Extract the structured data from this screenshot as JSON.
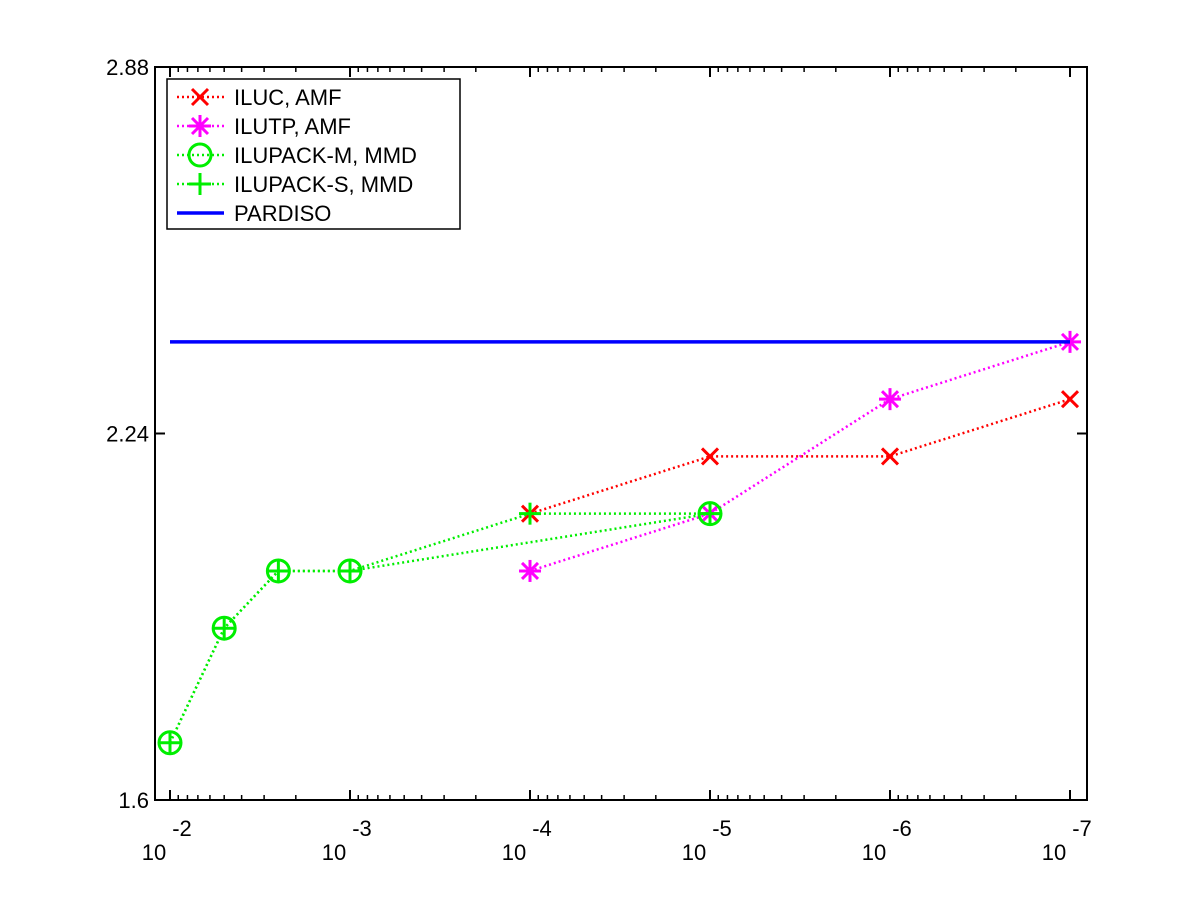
{
  "chart_data": {
    "type": "line",
    "title": "",
    "xlabel": "",
    "ylabel": "",
    "x_scale": "log",
    "x_reversed": true,
    "xlim": [
      0.01,
      1e-07
    ],
    "ylim": [
      1.6,
      2.88
    ],
    "x_ticks": [
      {
        "value": 0.01,
        "base": "10",
        "exp": "-2"
      },
      {
        "value": 0.001,
        "base": "10",
        "exp": "-3"
      },
      {
        "value": 0.0001,
        "base": "10",
        "exp": "-4"
      },
      {
        "value": 1e-05,
        "base": "10",
        "exp": "-5"
      },
      {
        "value": 1e-06,
        "base": "10",
        "exp": "-6"
      },
      {
        "value": 1e-07,
        "base": "10",
        "exp": "-7"
      }
    ],
    "y_ticks": [
      {
        "value": 1.6,
        "label": "1.6"
      },
      {
        "value": 2.24,
        "label": "2.24"
      },
      {
        "value": 2.88,
        "label": "2.88"
      }
    ],
    "grid": false,
    "legend_position": "top-left",
    "series": [
      {
        "name": "ILUC, AMF",
        "color": "#ff0000",
        "marker": "x",
        "line": "dotted",
        "x": [
          0.0001,
          1e-05,
          1e-06,
          1e-07
        ],
        "y": [
          2.1,
          2.2,
          2.2,
          2.3
        ]
      },
      {
        "name": "ILUTP, AMF",
        "color": "#ff00ff",
        "marker": "star",
        "line": "dotted",
        "x": [
          0.0001,
          1e-05,
          1e-06,
          1e-07
        ],
        "y": [
          2.0,
          2.1,
          2.3,
          2.4
        ]
      },
      {
        "name": "ILUPACK-M, MMD",
        "color": "#00ee00",
        "marker": "circle",
        "line": "dotted",
        "x": [
          0.01,
          0.005,
          0.0025,
          0.001,
          1e-05
        ],
        "y": [
          1.7,
          1.9,
          2.0,
          2.0,
          2.1
        ]
      },
      {
        "name": "ILUPACK-S, MMD",
        "color": "#00ee00",
        "marker": "plus",
        "line": "dotted",
        "x": [
          0.01,
          0.005,
          0.0025,
          0.001,
          0.0001,
          1e-05
        ],
        "y": [
          1.7,
          1.9,
          2.0,
          2.0,
          2.1,
          2.1
        ]
      },
      {
        "name": "PARDISO",
        "color": "#0000ff",
        "marker": "none",
        "line": "solid",
        "x": [
          0.01,
          1e-07
        ],
        "y": [
          2.4,
          2.4
        ]
      }
    ]
  }
}
